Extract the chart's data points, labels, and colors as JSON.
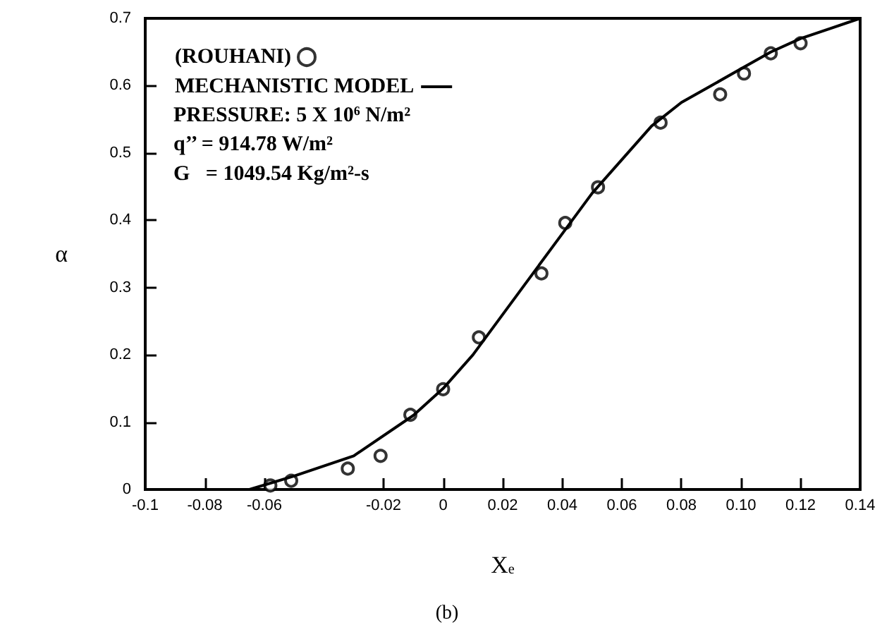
{
  "chart_data": {
    "type": "scatter",
    "xlabel": "X$_{e}$",
    "ylabel": "α",
    "annotations": [
      "PRESSURE: 5 X 10$^{6}$ N/m²",
      "q’’ = 914.78 W/m²",
      "G   = 1049.54 Kg/m²-s",
      "(b)"
    ],
    "series": [
      {
        "name": "(ROUHANI)",
        "color": "#000000",
        "marker": "circle",
        "x": [
          -0.058,
          -0.051,
          -0.032,
          -0.021,
          -0.011,
          0.0,
          0.012,
          0.033,
          0.041,
          0.052,
          0.073,
          0.093,
          0.101,
          0.11,
          0.12
        ],
        "values": [
          0.006,
          0.013,
          0.031,
          0.05,
          0.111,
          0.149,
          0.226,
          0.321,
          0.396,
          0.449,
          0.545,
          0.587,
          0.618,
          0.648,
          0.663
        ]
      },
      {
        "name": "MECHANISTIC MODEL",
        "type": "line",
        "color": "#000000",
        "line_style": "solid",
        "marker": "none",
        "x": [
          -0.065,
          -0.05,
          -0.03,
          -0.01,
          0.0,
          0.01,
          0.02,
          0.03,
          0.04,
          0.05,
          0.06,
          0.07,
          0.08,
          0.09,
          0.1,
          0.11,
          0.12,
          0.13,
          0.14
        ],
        "values": [
          0.0,
          0.02,
          0.05,
          0.11,
          0.15,
          0.2,
          0.26,
          0.32,
          0.38,
          0.44,
          0.49,
          0.54,
          0.575,
          0.6,
          0.625,
          0.65,
          0.67,
          0.685,
          0.7
        ]
      }
    ],
    "xlim": [
      -0.1,
      0.14
    ],
    "xticks": [
      -0.1,
      -0.08,
      -0.06,
      -0.02,
      0,
      0.02,
      0.04,
      0.06,
      0.08,
      {
        "value": 0.1,
        "label": "0.10"
      },
      0.12,
      0.14
    ],
    "ylim": [
      0,
      0.7
    ],
    "yticks": [
      0,
      0.1,
      0.2,
      0.3,
      0.4,
      0.5,
      0.6,
      0.7
    ],
    "grid": false,
    "legend": "top left"
  }
}
